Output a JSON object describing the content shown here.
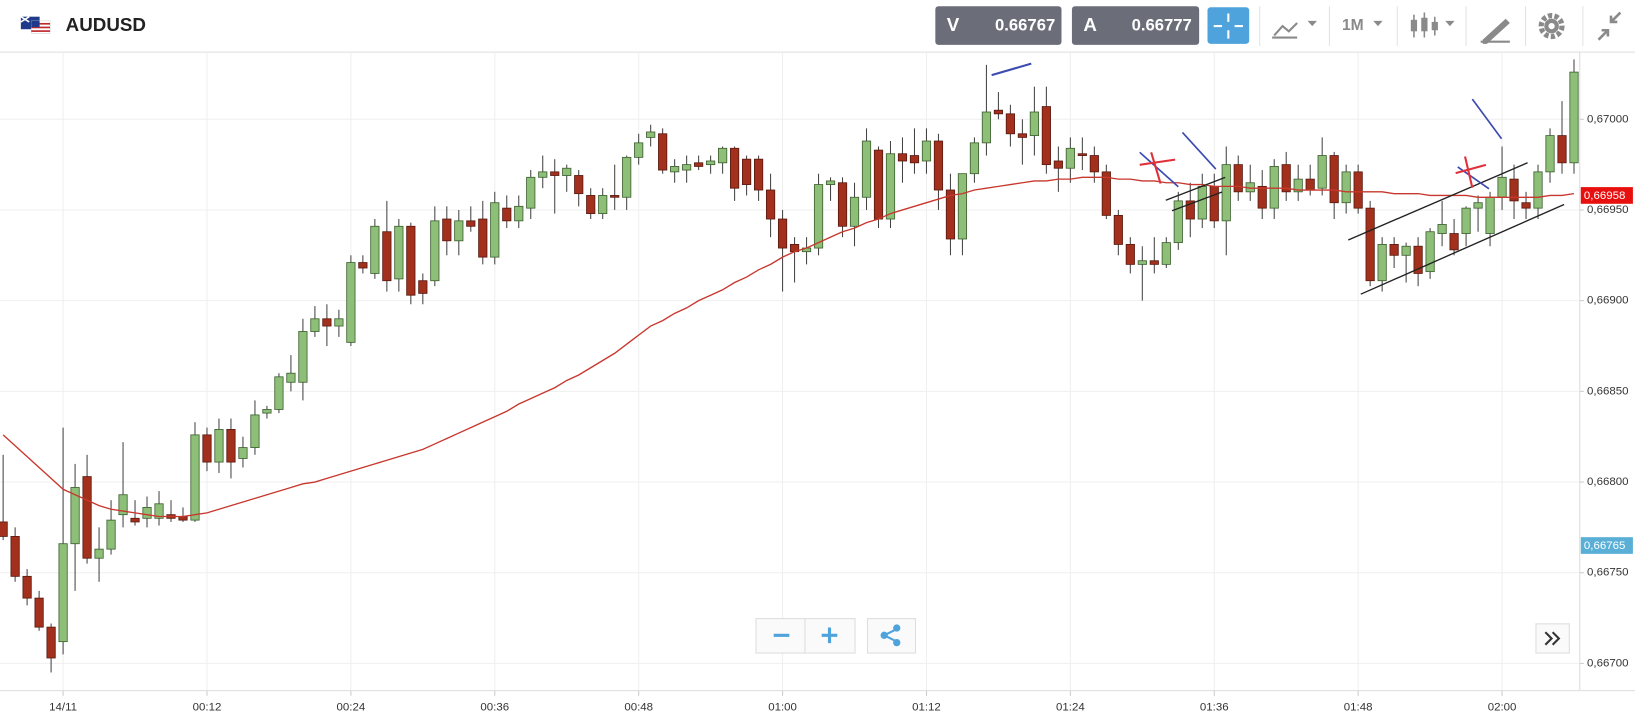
{
  "header": {
    "symbol": "AUDUSD",
    "bid_label": "V",
    "bid": "0.66767",
    "ask_label": "A",
    "ask": "0.66777",
    "timeframe": "1M"
  },
  "chart_data": {
    "type": "candlestick",
    "categories": [
      "23:55",
      "23:56",
      "23:57",
      "23:58",
      "23:59",
      "00:00",
      "00:01",
      "00:02",
      "00:03",
      "00:04",
      "00:05",
      "00:06",
      "00:07",
      "00:08",
      "00:09",
      "00:10",
      "00:11",
      "00:12",
      "00:13",
      "00:14",
      "00:15",
      "00:16",
      "00:17",
      "00:18",
      "00:19",
      "00:20",
      "00:21",
      "00:22",
      "00:23",
      "00:24",
      "00:25",
      "00:26",
      "00:27",
      "00:28",
      "00:29",
      "00:30",
      "00:31",
      "00:32",
      "00:33",
      "00:34",
      "00:35",
      "00:36",
      "00:37",
      "00:38",
      "00:39",
      "00:40",
      "00:41",
      "00:42",
      "00:43",
      "00:44",
      "00:45",
      "00:46",
      "00:47",
      "00:48",
      "00:49",
      "00:50",
      "00:51",
      "00:52",
      "00:53",
      "00:54",
      "00:55",
      "00:56",
      "00:57",
      "00:58",
      "00:59",
      "01:00",
      "01:01",
      "01:02",
      "01:03",
      "01:04",
      "01:05",
      "01:06",
      "01:07",
      "01:08",
      "01:09",
      "01:10",
      "01:11",
      "01:12",
      "01:13",
      "01:14",
      "01:15",
      "01:16",
      "01:17",
      "01:18",
      "01:19",
      "01:20",
      "01:21",
      "01:22",
      "01:23",
      "01:24",
      "01:25",
      "01:26",
      "01:27",
      "01:28",
      "01:29",
      "01:30",
      "01:31",
      "01:32",
      "01:33",
      "01:34",
      "01:35",
      "01:36",
      "01:37",
      "01:38",
      "01:39",
      "01:40",
      "01:41",
      "01:42",
      "01:43",
      "01:44",
      "01:45",
      "01:46",
      "01:47",
      "01:48",
      "01:49",
      "01:50",
      "01:51",
      "01:52",
      "01:53",
      "01:54",
      "01:55",
      "01:56",
      "01:57",
      "01:58",
      "01:59",
      "02:00",
      "02:01",
      "02:02",
      "02:03",
      "02:04",
      "02:05",
      "02:06"
    ],
    "open": [
      0.66778,
      0.6677,
      0.66748,
      0.66736,
      0.6672,
      0.66712,
      0.66766,
      0.66803,
      0.66758,
      0.66763,
      0.66782,
      0.6678,
      0.6678,
      0.6678,
      0.66782,
      0.66781,
      0.66779,
      0.66826,
      0.66811,
      0.66829,
      0.66813,
      0.66819,
      0.66838,
      0.6684,
      0.66855,
      0.66855,
      0.66883,
      0.6689,
      0.66886,
      0.66877,
      0.66921,
      0.66915,
      0.66938,
      0.66912,
      0.66941,
      0.66911,
      0.66911,
      0.66945,
      0.66933,
      0.66944,
      0.66945,
      0.66924,
      0.66951,
      0.66944,
      0.66951,
      0.66968,
      0.66971,
      0.66969,
      0.66969,
      0.66958,
      0.66948,
      0.66958,
      0.66957,
      0.66979,
      0.6699,
      0.66992,
      0.66971,
      0.66972,
      0.66976,
      0.66975,
      0.66976,
      0.66984,
      0.66978,
      0.66978,
      0.66961,
      0.66945,
      0.66931,
      0.66927,
      0.66929,
      0.66964,
      0.66965,
      0.66941,
      0.66957,
      0.66983,
      0.66945,
      0.66981,
      0.6698,
      0.66977,
      0.66988,
      0.66961,
      0.66934,
      0.6697,
      0.66987,
      0.67005,
      0.67003,
      0.66992,
      0.66991,
      0.67007,
      0.66977,
      0.66973,
      0.66981,
      0.6698,
      0.66971,
      0.66947,
      0.66931,
      0.6692,
      0.66922,
      0.6692,
      0.66932,
      0.66955,
      0.66945,
      0.66963,
      0.66944,
      0.66975,
      0.6696,
      0.66963,
      0.66951,
      0.66975,
      0.6696,
      0.66967,
      0.66962,
      0.6698,
      0.66954,
      0.66971,
      0.66951,
      0.66911,
      0.66931,
      0.66925,
      0.6693,
      0.66916,
      0.66937,
      0.66937,
      0.66937,
      0.66951,
      0.66937,
      0.66957,
      0.66967,
      0.66954,
      0.66951,
      0.66971,
      0.66991,
      0.66976
    ],
    "high": [
      0.66815,
      0.66775,
      0.66752,
      0.6674,
      0.66722,
      0.6683,
      0.6681,
      0.66815,
      0.66775,
      0.6679,
      0.66822,
      0.6679,
      0.66792,
      0.66795,
      0.6679,
      0.66786,
      0.66833,
      0.6683,
      0.66835,
      0.66835,
      0.66825,
      0.66845,
      0.66842,
      0.6686,
      0.6687,
      0.6689,
      0.66897,
      0.66898,
      0.66895,
      0.66925,
      0.66925,
      0.66945,
      0.66955,
      0.66945,
      0.66943,
      0.66915,
      0.66952,
      0.66952,
      0.6695,
      0.66952,
      0.66955,
      0.6696,
      0.66958,
      0.66958,
      0.66972,
      0.6698,
      0.66978,
      0.66975,
      0.66972,
      0.66962,
      0.66962,
      0.66975,
      0.6698,
      0.66992,
      0.66997,
      0.66995,
      0.66978,
      0.6698,
      0.6698,
      0.6698,
      0.66985,
      0.66985,
      0.6698,
      0.6698,
      0.6697,
      0.6695,
      0.66935,
      0.66935,
      0.6697,
      0.66968,
      0.66968,
      0.66965,
      0.66995,
      0.66985,
      0.66988,
      0.6699,
      0.66995,
      0.66995,
      0.66992,
      0.6697,
      0.6697,
      0.6699,
      0.6703,
      0.67015,
      0.67008,
      0.67,
      0.67018,
      0.67018,
      0.66985,
      0.6699,
      0.6699,
      0.66985,
      0.66975,
      0.6695,
      0.66935,
      0.6693,
      0.66935,
      0.66935,
      0.6696,
      0.66965,
      0.6697,
      0.6697,
      0.66985,
      0.6698,
      0.66975,
      0.66972,
      0.66978,
      0.66982,
      0.66975,
      0.66975,
      0.6699,
      0.66982,
      0.66975,
      0.66975,
      0.66955,
      0.66935,
      0.66935,
      0.66932,
      0.66935,
      0.6694,
      0.66955,
      0.66945,
      0.66952,
      0.66958,
      0.6696,
      0.66985,
      0.66975,
      0.6696,
      0.66975,
      0.66995,
      0.6701,
      0.67033
    ],
    "low": [
      0.66768,
      0.66745,
      0.66732,
      0.66718,
      0.66695,
      0.66705,
      0.6674,
      0.66755,
      0.66745,
      0.6676,
      0.66775,
      0.66776,
      0.66775,
      0.66776,
      0.66778,
      0.66778,
      0.66778,
      0.66806,
      0.66805,
      0.66802,
      0.66808,
      0.66815,
      0.66835,
      0.66838,
      0.6685,
      0.66845,
      0.6688,
      0.66875,
      0.6688,
      0.66875,
      0.66915,
      0.66912,
      0.66905,
      0.66905,
      0.66898,
      0.66898,
      0.66908,
      0.66925,
      0.66925,
      0.66938,
      0.6692,
      0.6692,
      0.6694,
      0.6694,
      0.66945,
      0.66962,
      0.66948,
      0.6696,
      0.66952,
      0.66945,
      0.66945,
      0.6695,
      0.6695,
      0.66975,
      0.66985,
      0.6697,
      0.66965,
      0.66965,
      0.66972,
      0.6697,
      0.6697,
      0.66955,
      0.66958,
      0.66955,
      0.66935,
      0.66905,
      0.6691,
      0.6692,
      0.66925,
      0.66955,
      0.66935,
      0.6693,
      0.6695,
      0.6694,
      0.6694,
      0.66965,
      0.6697,
      0.6697,
      0.6695,
      0.66925,
      0.66925,
      0.66965,
      0.6698,
      0.67,
      0.66985,
      0.66975,
      0.6698,
      0.6697,
      0.6696,
      0.66965,
      0.66972,
      0.66965,
      0.66945,
      0.66925,
      0.66915,
      0.669,
      0.66915,
      0.66918,
      0.66928,
      0.66935,
      0.6694,
      0.6694,
      0.66925,
      0.66955,
      0.66955,
      0.66945,
      0.66945,
      0.66955,
      0.66955,
      0.66958,
      0.66958,
      0.66945,
      0.66948,
      0.66948,
      0.66908,
      0.66905,
      0.66918,
      0.6691,
      0.66908,
      0.66912,
      0.6693,
      0.66925,
      0.6693,
      0.66938,
      0.6693,
      0.6695,
      0.66945,
      0.66945,
      0.66945,
      0.66965,
      0.6697,
      0.6697
    ],
    "close": [
      0.6677,
      0.66748,
      0.66736,
      0.6672,
      0.66703,
      0.66766,
      0.66797,
      0.66758,
      0.66763,
      0.66779,
      0.66793,
      0.66778,
      0.66786,
      0.66788,
      0.6678,
      0.66779,
      0.66826,
      0.66811,
      0.66829,
      0.66811,
      0.66819,
      0.66837,
      0.6684,
      0.66858,
      0.6686,
      0.66883,
      0.6689,
      0.66886,
      0.6689,
      0.66921,
      0.66918,
      0.66941,
      0.66911,
      0.66941,
      0.66903,
      0.66904,
      0.66944,
      0.66933,
      0.66944,
      0.66941,
      0.66924,
      0.66954,
      0.66944,
      0.66952,
      0.66968,
      0.66971,
      0.66969,
      0.66973,
      0.66959,
      0.66948,
      0.66958,
      0.66957,
      0.66979,
      0.66987,
      0.66993,
      0.66972,
      0.66974,
      0.66975,
      0.66974,
      0.66977,
      0.66984,
      0.66962,
      0.66964,
      0.66961,
      0.66945,
      0.66929,
      0.66927,
      0.66929,
      0.66964,
      0.66966,
      0.66941,
      0.66957,
      0.66988,
      0.66945,
      0.66981,
      0.66977,
      0.66976,
      0.66988,
      0.66961,
      0.66934,
      0.6697,
      0.66987,
      0.67004,
      0.67003,
      0.66992,
      0.6699,
      0.67004,
      0.66975,
      0.66973,
      0.66984,
      0.6698,
      0.66971,
      0.66947,
      0.66931,
      0.6692,
      0.66922,
      0.6692,
      0.66932,
      0.66955,
      0.66945,
      0.66963,
      0.66944,
      0.66975,
      0.6696,
      0.66965,
      0.66951,
      0.66974,
      0.6696,
      0.66967,
      0.66961,
      0.6698,
      0.66954,
      0.66971,
      0.66951,
      0.66911,
      0.66931,
      0.66925,
      0.6693,
      0.66915,
      0.66938,
      0.66942,
      0.66928,
      0.66951,
      0.66954,
      0.66957,
      0.66968,
      0.66955,
      0.66951,
      0.66971,
      0.66991,
      0.66976,
      0.67026
    ],
    "up_color": "#8dbf78",
    "down_color": "#a3301c",
    "ma": {
      "color": "#c8372d",
      "values": [
        0.66826,
        0.6682,
        0.66814,
        0.66808,
        0.66802,
        0.66796,
        0.66793,
        0.6679,
        0.66787,
        0.66785,
        0.66784,
        0.66783,
        0.66782,
        0.66781,
        0.66781,
        0.66781,
        0.66782,
        0.66783,
        0.66785,
        0.66787,
        0.66789,
        0.66791,
        0.66793,
        0.66795,
        0.66797,
        0.66799,
        0.668,
        0.66802,
        0.66804,
        0.66806,
        0.66808,
        0.6681,
        0.66812,
        0.66814,
        0.66816,
        0.66818,
        0.66821,
        0.66824,
        0.66827,
        0.6683,
        0.66833,
        0.66836,
        0.66839,
        0.66843,
        0.66846,
        0.66849,
        0.66852,
        0.66856,
        0.66859,
        0.66863,
        0.66867,
        0.66871,
        0.66876,
        0.66881,
        0.66886,
        0.66889,
        0.66893,
        0.66896,
        0.669,
        0.66903,
        0.66906,
        0.6691,
        0.66913,
        0.66917,
        0.6692,
        0.66924,
        0.66927,
        0.66929,
        0.66932,
        0.66935,
        0.66938,
        0.6694,
        0.66943,
        0.66945,
        0.66948,
        0.6695,
        0.66952,
        0.66954,
        0.66956,
        0.66958,
        0.66959,
        0.66961,
        0.66962,
        0.66963,
        0.66964,
        0.66965,
        0.66966,
        0.66966,
        0.66967,
        0.66967,
        0.66968,
        0.66968,
        0.66968,
        0.66967,
        0.66967,
        0.66966,
        0.66966,
        0.66965,
        0.66965,
        0.66964,
        0.66964,
        0.66963,
        0.66963,
        0.66963,
        0.66962,
        0.66962,
        0.66962,
        0.66962,
        0.66961,
        0.66961,
        0.66961,
        0.66961,
        0.6696,
        0.6696,
        0.6696,
        0.6696,
        0.66959,
        0.66959,
        0.66959,
        0.66958,
        0.66958,
        0.66958,
        0.66958,
        0.66957,
        0.66957,
        0.66957,
        0.66957,
        0.66957,
        0.66957,
        0.66958,
        0.66958,
        0.66959
      ]
    },
    "ylim": [
      0.66685,
      0.67037
    ],
    "yticks": [
      {
        "value": 0.667,
        "label": "0,66700"
      },
      {
        "value": 0.6675,
        "label": "0,66750"
      },
      {
        "value": 0.668,
        "label": "0,66800"
      },
      {
        "value": 0.6685,
        "label": "0,66850"
      },
      {
        "value": 0.669,
        "label": "0,66900"
      },
      {
        "value": 0.6695,
        "label": "0,66950"
      },
      {
        "value": 0.67,
        "label": "0,67000"
      }
    ],
    "xticks": [
      {
        "value": "00:00",
        "label": "14/11"
      },
      "00:12",
      "00:24",
      "00:36",
      "00:48",
      "01:00",
      "01:12",
      "01:24",
      "01:36",
      "01:48",
      "02:00"
    ],
    "grid": true,
    "price_tags": [
      {
        "value": 0.66958,
        "label": "0,66958",
        "color": "#e8100f"
      },
      {
        "value": 0.66765,
        "label": "0,66765",
        "color": "#5aafd6"
      }
    ]
  }
}
